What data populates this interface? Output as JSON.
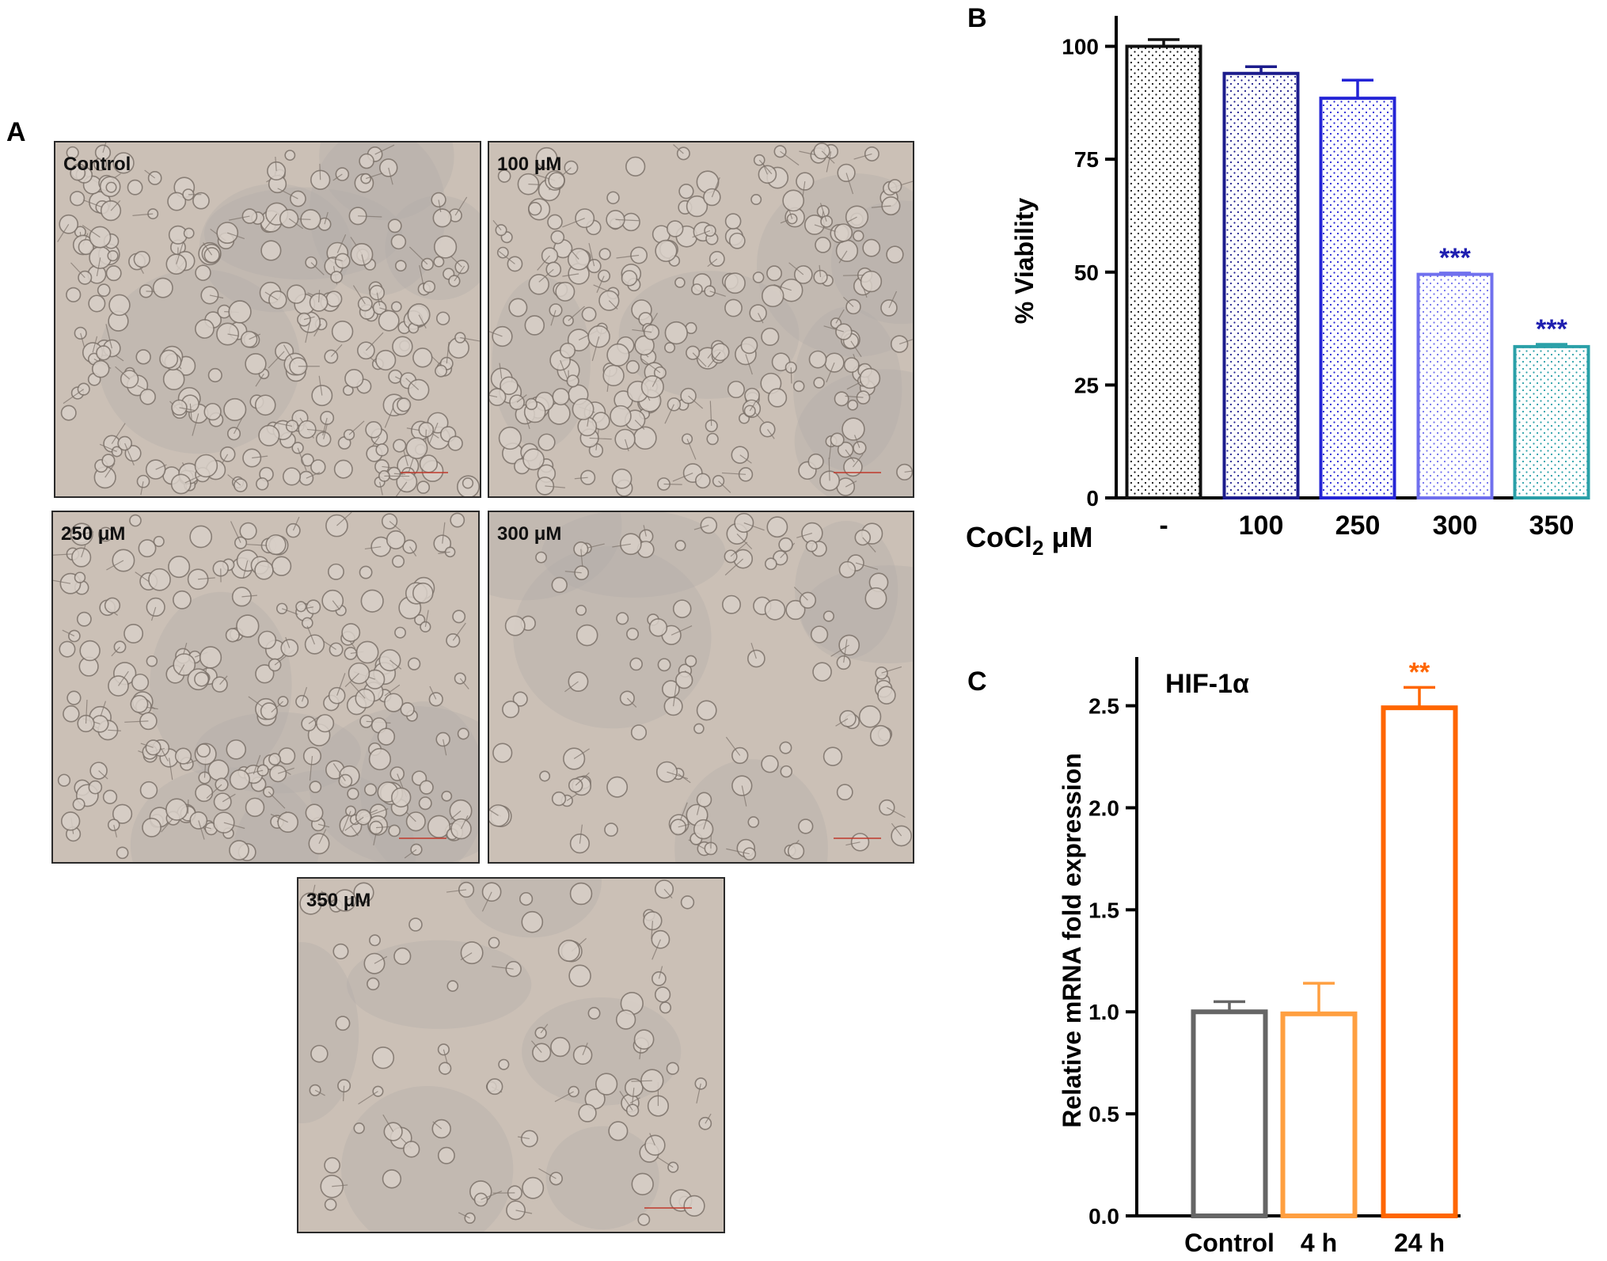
{
  "panels": {
    "a_letter": "A",
    "b_letter": "B",
    "c_letter": "C"
  },
  "micrographs": [
    {
      "label": "Control",
      "density": 260,
      "seed": 11
    },
    {
      "label": "100 μM",
      "density": 240,
      "seed": 23
    },
    {
      "label": "250 μM",
      "density": 230,
      "seed": 37
    },
    {
      "label": "300 μM",
      "density": 110,
      "seed": 51
    },
    {
      "label": "350 μM",
      "density": 90,
      "seed": 67
    }
  ],
  "colors": {
    "micro_bg": "#cbc0b6",
    "micro_cell": "#7d736b",
    "scale_bar": "#c0392b"
  },
  "chart_data": [
    {
      "type": "bar",
      "id": "B",
      "title": "",
      "ylabel": "% Viability",
      "xlabel_prefix": "CoCl",
      "xlabel_sub": "2",
      "xlabel_suffix": " μM",
      "categories": [
        "-",
        "100",
        "250",
        "300",
        "350"
      ],
      "values": [
        100,
        94,
        88.5,
        49.5,
        33.5
      ],
      "errors": [
        1.5,
        1.5,
        4,
        0.3,
        0.5
      ],
      "significance": [
        "",
        "",
        "",
        "***",
        "***"
      ],
      "bar_colors": [
        "#111111",
        "#1c1c8c",
        "#2424d6",
        "#7070ee",
        "#2aa0a8"
      ],
      "significance_color": "#1f1fb0",
      "yticks": [
        0,
        25,
        50,
        75,
        100
      ],
      "ylim": [
        0,
        105
      ]
    },
    {
      "type": "bar",
      "id": "C",
      "title": "HIF-1α",
      "ylabel": "Relative mRNA fold expression",
      "categories": [
        "Control",
        "4 h",
        "24 h"
      ],
      "values": [
        1.0,
        0.99,
        2.49
      ],
      "errors": [
        0.05,
        0.15,
        0.1
      ],
      "significance": [
        "",
        "",
        "**"
      ],
      "bar_colors": [
        "#666666",
        "#ff9f40",
        "#ff6600"
      ],
      "significance_color": "#ff6600",
      "yticks": [
        "0.0",
        "0.5",
        "1.0",
        "1.5",
        "2.0",
        "2.5"
      ],
      "ylim": [
        0,
        2.7
      ]
    }
  ]
}
